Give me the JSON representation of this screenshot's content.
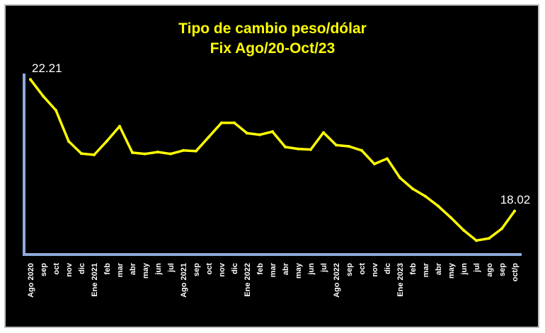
{
  "chart_data": {
    "type": "line",
    "title": "Tipo de cambio peso/dólar",
    "subtitle": "Fix Ago/20-Oct/23",
    "xlabel": "",
    "ylabel": "",
    "categories": [
      "Ago 2020",
      "sep",
      "oct",
      "nov",
      "dic",
      "Ene 2021",
      "feb",
      "mar",
      "abr",
      "may",
      "jun",
      "jul",
      "Ago 2021",
      "sep",
      "oct",
      "nov",
      "dic",
      "Ene 2022",
      "feb",
      "mar",
      "abr",
      "may",
      "jun",
      "jul",
      "Ago 2022",
      "sep",
      "oct",
      "nov",
      "dic",
      "Ene 2023",
      "feb",
      "mar",
      "abr",
      "may",
      "jun",
      "jul",
      "ago",
      "sep",
      "oct/p"
    ],
    "values": [
      22.21,
      21.68,
      21.23,
      20.24,
      19.85,
      19.81,
      20.25,
      20.72,
      19.88,
      19.84,
      19.9,
      19.84,
      19.95,
      19.93,
      20.38,
      20.83,
      20.83,
      20.5,
      20.45,
      20.55,
      20.06,
      20.0,
      19.98,
      20.52,
      20.12,
      20.08,
      19.95,
      19.52,
      19.69,
      19.08,
      18.73,
      18.49,
      18.18,
      17.81,
      17.41,
      17.08,
      17.15,
      17.46,
      18.02
    ],
    "data_labels": [
      {
        "index": 0,
        "text": "22.21"
      },
      {
        "index": 38,
        "text": "18.02"
      }
    ],
    "ylim": [
      16.5,
      22.4
    ],
    "grid": false,
    "legend": "none",
    "colors": {
      "line": "#ffff00",
      "axis": "#8faadc",
      "background": "#000000",
      "title": "#ffff00",
      "text": "#ffffff"
    }
  }
}
